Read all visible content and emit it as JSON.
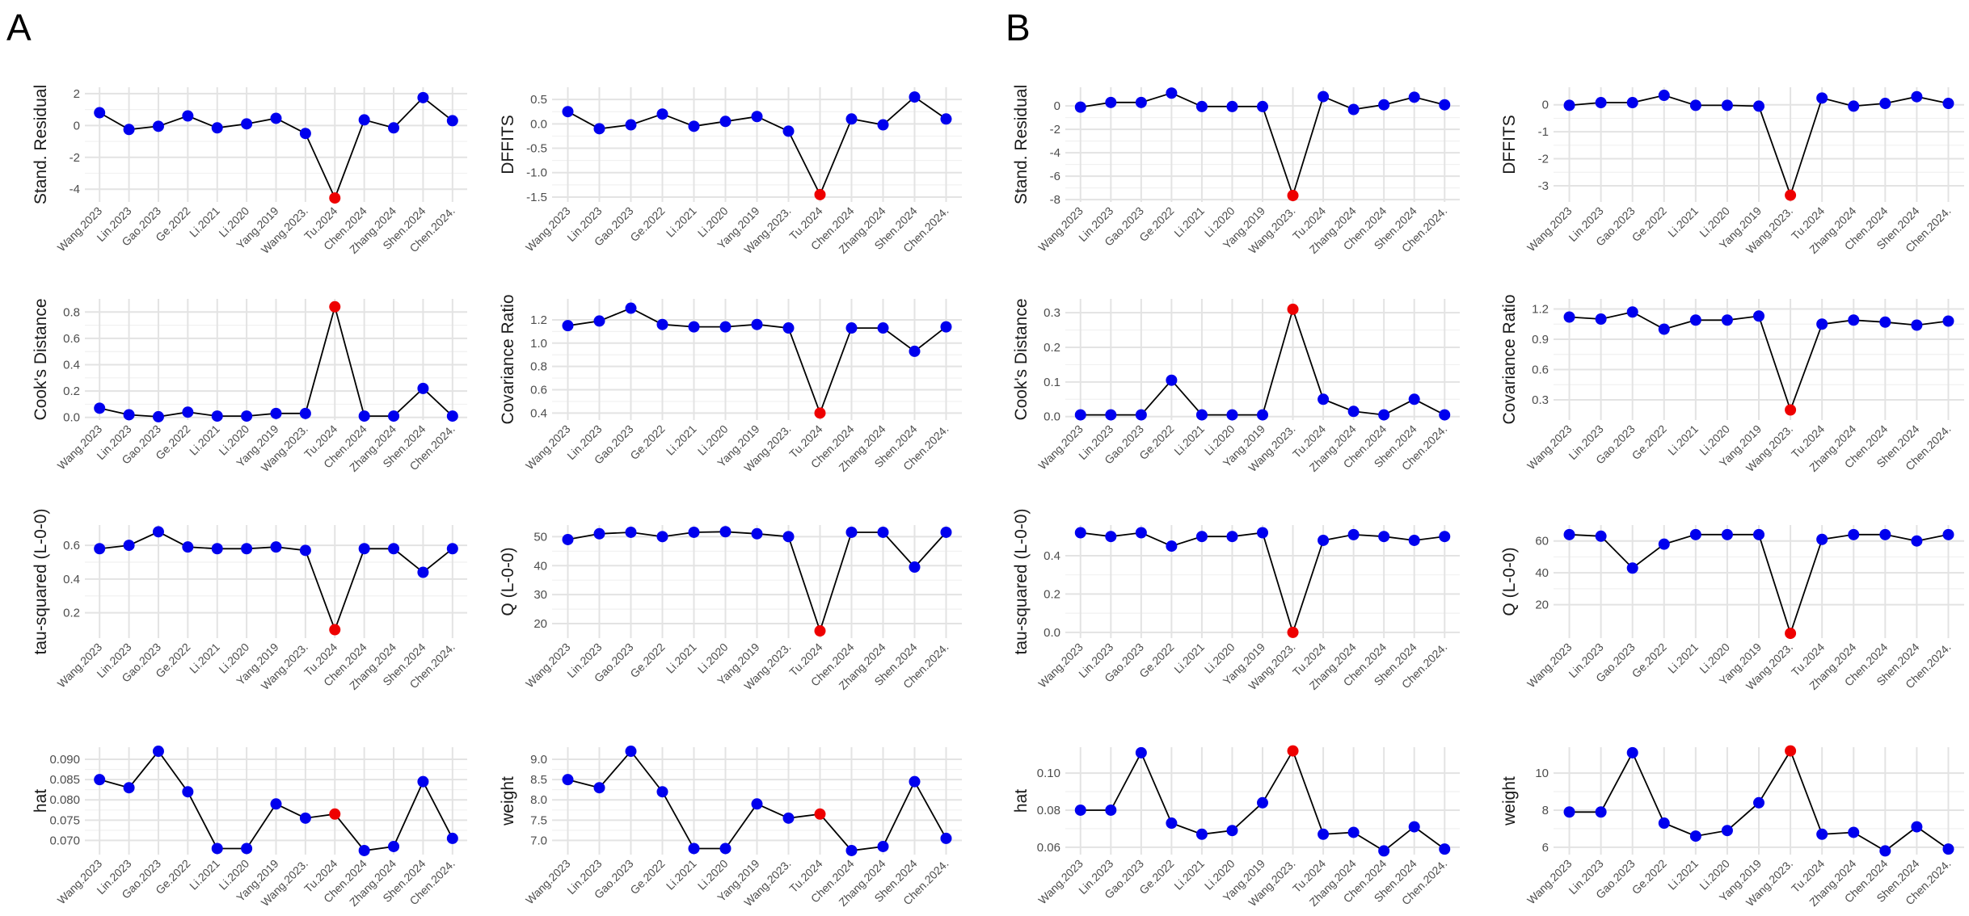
{
  "panel_labels": [
    "A",
    "B"
  ],
  "colors": {
    "normal_point": "#0000ee",
    "influential_point": "#ee0000",
    "line": "#000000"
  },
  "chart_data": [
    {
      "id": "A-stand-resid",
      "panel": "A",
      "type": "line",
      "ylabel": "Stand. Residual",
      "categories": [
        "Wang.2023",
        "Lin.2023",
        "Gao.2023",
        "Ge.2022",
        "Li.2021",
        "Li.2020",
        "Yang.2019",
        "Wang.2023.",
        "Tu.2024",
        "Chen.2024",
        "Zhang.2024",
        "Shen.2024",
        "Chen.2024."
      ],
      "values": [
        0.8,
        -0.25,
        -0.05,
        0.6,
        -0.15,
        0.1,
        0.45,
        -0.5,
        -4.55,
        0.35,
        -0.15,
        1.75,
        0.3
      ],
      "highlight": 8,
      "ylim": [
        -4.8,
        2.4
      ],
      "yticks": [
        -4,
        -2,
        0,
        2
      ],
      "ytick_labels": [
        "-4",
        "-2",
        "0",
        "2"
      ]
    },
    {
      "id": "A-dffits",
      "panel": "A",
      "type": "line",
      "ylabel": "DFFITS",
      "categories": [
        "Wang.2023",
        "Lin.2023",
        "Gao.2023",
        "Ge.2022",
        "Li.2021",
        "Li.2020",
        "Yang.2019",
        "Wang.2023.",
        "Tu.2024",
        "Chen.2024",
        "Zhang.2024",
        "Shen.2024",
        "Chen.2024."
      ],
      "values": [
        0.25,
        -0.1,
        -0.02,
        0.2,
        -0.05,
        0.05,
        0.15,
        -0.15,
        -1.45,
        0.1,
        -0.02,
        0.55,
        0.1
      ],
      "highlight": 8,
      "ylim": [
        -1.6,
        0.75
      ],
      "yticks": [
        -1.5,
        -1.0,
        -0.5,
        0.0,
        0.5
      ],
      "ytick_labels": [
        "-1.5",
        "-1.0",
        "-0.5",
        "0.0",
        "0.5"
      ]
    },
    {
      "id": "B-stand-resid",
      "panel": "B",
      "type": "line",
      "ylabel": "Stand. Residual",
      "categories": [
        "Wang.2023",
        "Lin.2023",
        "Gao.2023",
        "Ge.2022",
        "Li.2021",
        "Li.2020",
        "Yang.2019",
        "Wang.2023.",
        "Tu.2024",
        "Zhang.2024",
        "Chen.2024",
        "Shen.2024",
        "Chen.2024."
      ],
      "values": [
        -0.1,
        0.3,
        0.3,
        1.1,
        -0.05,
        -0.05,
        -0.05,
        -7.65,
        0.8,
        -0.3,
        0.1,
        0.75,
        0.1
      ],
      "highlight": 7,
      "ylim": [
        -8.2,
        1.6
      ],
      "yticks": [
        -8,
        -6,
        -4,
        -2,
        0
      ],
      "ytick_labels": [
        "-8",
        "-6",
        "-4",
        "-2",
        "0"
      ]
    },
    {
      "id": "B-dffits",
      "panel": "B",
      "type": "line",
      "ylabel": "DFFITS",
      "categories": [
        "Wang.2023",
        "Lin.2023",
        "Gao.2023",
        "Ge.2022",
        "Li.2021",
        "Li.2020",
        "Yang.2019",
        "Wang.2023.",
        "Tu.2024",
        "Zhang.2024",
        "Chen.2024",
        "Shen.2024",
        "Chen.2024."
      ],
      "values": [
        -0.02,
        0.08,
        0.08,
        0.35,
        -0.02,
        -0.02,
        -0.05,
        -3.35,
        0.25,
        -0.05,
        0.05,
        0.3,
        0.05
      ],
      "highlight": 7,
      "ylim": [
        -3.6,
        0.65
      ],
      "yticks": [
        -3,
        -2,
        -1,
        0
      ],
      "ytick_labels": [
        "-3",
        "-2",
        "-1",
        "0"
      ]
    },
    {
      "id": "A-cooks",
      "panel": "A",
      "type": "line",
      "ylabel": "Cook's Distance",
      "categories": [
        "Wang.2023",
        "Lin.2023",
        "Gao.2023",
        "Ge.2022",
        "Li.2021",
        "Li.2020",
        "Yang.2019",
        "Wang.2023.",
        "Tu.2024",
        "Chen.2024",
        "Zhang.2024",
        "Shen.2024",
        "Chen.2024."
      ],
      "values": [
        0.07,
        0.02,
        0.005,
        0.04,
        0.01,
        0.01,
        0.03,
        0.03,
        0.84,
        0.01,
        0.01,
        0.22,
        0.01
      ],
      "highlight": 8,
      "ylim": [
        -0.02,
        0.9
      ],
      "yticks": [
        0.0,
        0.2,
        0.4,
        0.6,
        0.8
      ],
      "ytick_labels": [
        "0.0",
        "0.2",
        "0.4",
        "0.6",
        "0.8"
      ]
    },
    {
      "id": "A-cov-ratio",
      "panel": "A",
      "type": "line",
      "ylabel": "Covariance Ratio",
      "categories": [
        "Wang.2023",
        "Lin.2023",
        "Gao.2023",
        "Ge.2022",
        "Li.2021",
        "Li.2020",
        "Yang.2019",
        "Wang.2023.",
        "Tu.2024",
        "Chen.2024",
        "Zhang.2024",
        "Shen.2024",
        "Chen.2024."
      ],
      "values": [
        1.15,
        1.19,
        1.3,
        1.16,
        1.14,
        1.14,
        1.16,
        1.13,
        0.4,
        1.13,
        1.13,
        0.93,
        1.14
      ],
      "highlight": 8,
      "ylim": [
        0.34,
        1.38
      ],
      "yticks": [
        0.4,
        0.6,
        0.8,
        1.0,
        1.2
      ],
      "ytick_labels": [
        "0.4",
        "0.6",
        "0.8",
        "1.0",
        "1.2"
      ]
    },
    {
      "id": "B-cooks",
      "panel": "B",
      "type": "line",
      "ylabel": "Cook's Distance",
      "categories": [
        "Wang.2023",
        "Lin.2023",
        "Gao.2023",
        "Ge.2022",
        "Li.2021",
        "Li.2020",
        "Yang.2019",
        "Wang.2023.",
        "Tu.2024",
        "Zhang.2024",
        "Chen.2024",
        "Shen.2024",
        "Chen.2024."
      ],
      "values": [
        0.005,
        0.005,
        0.005,
        0.105,
        0.005,
        0.005,
        0.005,
        0.31,
        0.05,
        0.015,
        0.005,
        0.05,
        0.005
      ],
      "highlight": 7,
      "ylim": [
        -0.01,
        0.34
      ],
      "yticks": [
        0.0,
        0.1,
        0.2,
        0.3
      ],
      "ytick_labels": [
        "0.0",
        "0.1",
        "0.2",
        "0.3"
      ]
    },
    {
      "id": "B-cov-ratio",
      "panel": "B",
      "type": "line",
      "ylabel": "Covariance Ratio",
      "categories": [
        "Wang.2023",
        "Lin.2023",
        "Gao.2023",
        "Ge.2022",
        "Li.2021",
        "Li.2020",
        "Yang.2019",
        "Wang.2023.",
        "Tu.2024",
        "Zhang.2024",
        "Chen.2024",
        "Shen.2024",
        "Chen.2024."
      ],
      "values": [
        1.12,
        1.1,
        1.17,
        1.0,
        1.09,
        1.09,
        1.13,
        0.2,
        1.05,
        1.09,
        1.07,
        1.04,
        1.08
      ],
      "highlight": 7,
      "ylim": [
        0.1,
        1.3
      ],
      "yticks": [
        0.3,
        0.6,
        0.9,
        1.2
      ],
      "ytick_labels": [
        "0.3",
        "0.6",
        "0.9",
        "1.2"
      ]
    },
    {
      "id": "A-tau2",
      "panel": "A",
      "type": "line",
      "ylabel": "tau-squared (L-0-0)",
      "categories": [
        "Wang.2023",
        "Lin.2023",
        "Gao.2023",
        "Ge.2022",
        "Li.2021",
        "Li.2020",
        "Yang.2019",
        "Wang.2023.",
        "Tu.2024",
        "Chen.2024",
        "Zhang.2024",
        "Shen.2024",
        "Chen.2024."
      ],
      "values": [
        0.58,
        0.6,
        0.68,
        0.59,
        0.58,
        0.58,
        0.59,
        0.57,
        0.1,
        0.58,
        0.58,
        0.44,
        0.58
      ],
      "highlight": 8,
      "ylim": [
        0.05,
        0.72
      ],
      "yticks": [
        0.2,
        0.4,
        0.6
      ],
      "ytick_labels": [
        "0.2",
        "0.4",
        "0.6"
      ]
    },
    {
      "id": "A-Q",
      "panel": "A",
      "type": "line",
      "ylabel": "Q (L-0-0)",
      "categories": [
        "Wang.2023",
        "Lin.2023",
        "Gao.2023",
        "Ge.2022",
        "Li.2021",
        "Li.2020",
        "Yang.2019",
        "Wang.2023.",
        "Tu.2024",
        "Chen.2024",
        "Zhang.2024",
        "Shen.2024",
        "Chen.2024."
      ],
      "values": [
        49,
        51,
        51.5,
        50,
        51.5,
        51.7,
        51,
        50,
        17.5,
        51.5,
        51.5,
        39.5,
        51.5
      ],
      "highlight": 8,
      "ylim": [
        15,
        54
      ],
      "yticks": [
        20,
        30,
        40,
        50
      ],
      "ytick_labels": [
        "20",
        "30",
        "40",
        "50"
      ]
    },
    {
      "id": "B-tau2",
      "panel": "B",
      "type": "line",
      "ylabel": "tau-squared (L-0-0)",
      "categories": [
        "Wang.2023",
        "Lin.2023",
        "Gao.2023",
        "Ge.2022",
        "Li.2021",
        "Li.2020",
        "Yang.2019",
        "Wang.2023.",
        "Tu.2024",
        "Zhang.2024",
        "Chen.2024",
        "Shen.2024",
        "Chen.2024."
      ],
      "values": [
        0.52,
        0.5,
        0.52,
        0.45,
        0.5,
        0.5,
        0.52,
        0.0,
        0.48,
        0.51,
        0.5,
        0.48,
        0.5
      ],
      "highlight": 7,
      "ylim": [
        -0.03,
        0.56
      ],
      "yticks": [
        0.0,
        0.2,
        0.4
      ],
      "ytick_labels": [
        "0.0",
        "0.2",
        "0.4"
      ]
    },
    {
      "id": "B-Q",
      "panel": "B",
      "type": "line",
      "ylabel": "Q (L-0-0)",
      "categories": [
        "Wang.2023",
        "Lin.2023",
        "Gao.2023",
        "Ge.2022",
        "Li.2021",
        "Li.2020",
        "Yang.2019",
        "Wang.2023.",
        "Tu.2024",
        "Zhang.2024",
        "Chen.2024",
        "Shen.2024",
        "Chen.2024."
      ],
      "values": [
        64,
        63,
        43,
        58,
        64,
        64,
        64,
        2,
        61,
        64,
        64,
        60,
        64
      ],
      "highlight": 7,
      "ylim": [
        -1,
        70
      ],
      "yticks": [
        20,
        40,
        60
      ],
      "ytick_labels": [
        "20",
        "40",
        "60"
      ]
    },
    {
      "id": "A-hat",
      "panel": "A",
      "type": "line",
      "ylabel": "hat",
      "categories": [
        "Wang.2023",
        "Lin.2023",
        "Gao.2023",
        "Ge.2022",
        "Li.2021",
        "Li.2020",
        "Yang.2019",
        "Wang.2023.",
        "Tu.2024",
        "Chen.2024",
        "Zhang.2024",
        "Shen.2024",
        "Chen.2024."
      ],
      "values": [
        0.085,
        0.083,
        0.092,
        0.082,
        0.068,
        0.068,
        0.079,
        0.0755,
        0.0765,
        0.0675,
        0.0685,
        0.0845,
        0.0705
      ],
      "highlight": 8,
      "ylim": [
        0.0665,
        0.093
      ],
      "yticks": [
        0.07,
        0.075,
        0.08,
        0.085,
        0.09
      ],
      "ytick_labels": [
        "0.070",
        "0.075",
        "0.080",
        "0.085",
        "0.090"
      ]
    },
    {
      "id": "A-weight",
      "panel": "A",
      "type": "line",
      "ylabel": "weight",
      "categories": [
        "Wang.2023",
        "Lin.2023",
        "Gao.2023",
        "Ge.2022",
        "Li.2021",
        "Li.2020",
        "Yang.2019",
        "Wang.2023.",
        "Tu.2024",
        "Chen.2024",
        "Zhang.2024",
        "Shen.2024",
        "Chen.2024."
      ],
      "values": [
        8.5,
        8.3,
        9.2,
        8.2,
        6.8,
        6.8,
        7.9,
        7.55,
        7.65,
        6.75,
        6.85,
        8.45,
        7.05
      ],
      "highlight": 8,
      "ylim": [
        6.65,
        9.3
      ],
      "yticks": [
        7.0,
        7.5,
        8.0,
        8.5,
        9.0
      ],
      "ytick_labels": [
        "7.0",
        "7.5",
        "8.0",
        "8.5",
        "9.0"
      ]
    },
    {
      "id": "B-hat",
      "panel": "B",
      "type": "line",
      "ylabel": "hat",
      "categories": [
        "Wang.2023",
        "Lin.2023",
        "Gao.2023",
        "Ge.2022",
        "Li.2021",
        "Li.2020",
        "Yang.2019",
        "Wang.2023.",
        "Tu.2024",
        "Zhang.2024",
        "Chen.2024",
        "Shen.2024",
        "Chen.2024."
      ],
      "values": [
        0.08,
        0.08,
        0.111,
        0.073,
        0.067,
        0.069,
        0.084,
        0.112,
        0.067,
        0.068,
        0.058,
        0.071,
        0.059
      ],
      "highlight": 7,
      "ylim": [
        0.056,
        0.114
      ],
      "yticks": [
        0.06,
        0.08,
        0.1
      ],
      "ytick_labels": [
        "0.06",
        "0.08",
        "0.10"
      ]
    },
    {
      "id": "B-weight",
      "panel": "B",
      "type": "line",
      "ylabel": "weight",
      "categories": [
        "Wang.2023",
        "Lin.2023",
        "Gao.2023",
        "Ge.2022",
        "Li.2021",
        "Li.2020",
        "Yang.2019",
        "Wang.2023.",
        "Tu.2024",
        "Zhang.2024",
        "Chen.2024",
        "Shen.2024",
        "Chen.2024."
      ],
      "values": [
        7.9,
        7.9,
        11.1,
        7.3,
        6.6,
        6.9,
        8.4,
        11.2,
        6.7,
        6.8,
        5.8,
        7.1,
        5.9
      ],
      "highlight": 7,
      "ylim": [
        5.6,
        11.4
      ],
      "yticks": [
        6,
        8,
        10
      ],
      "ytick_labels": [
        "6",
        "8",
        "10"
      ]
    }
  ]
}
